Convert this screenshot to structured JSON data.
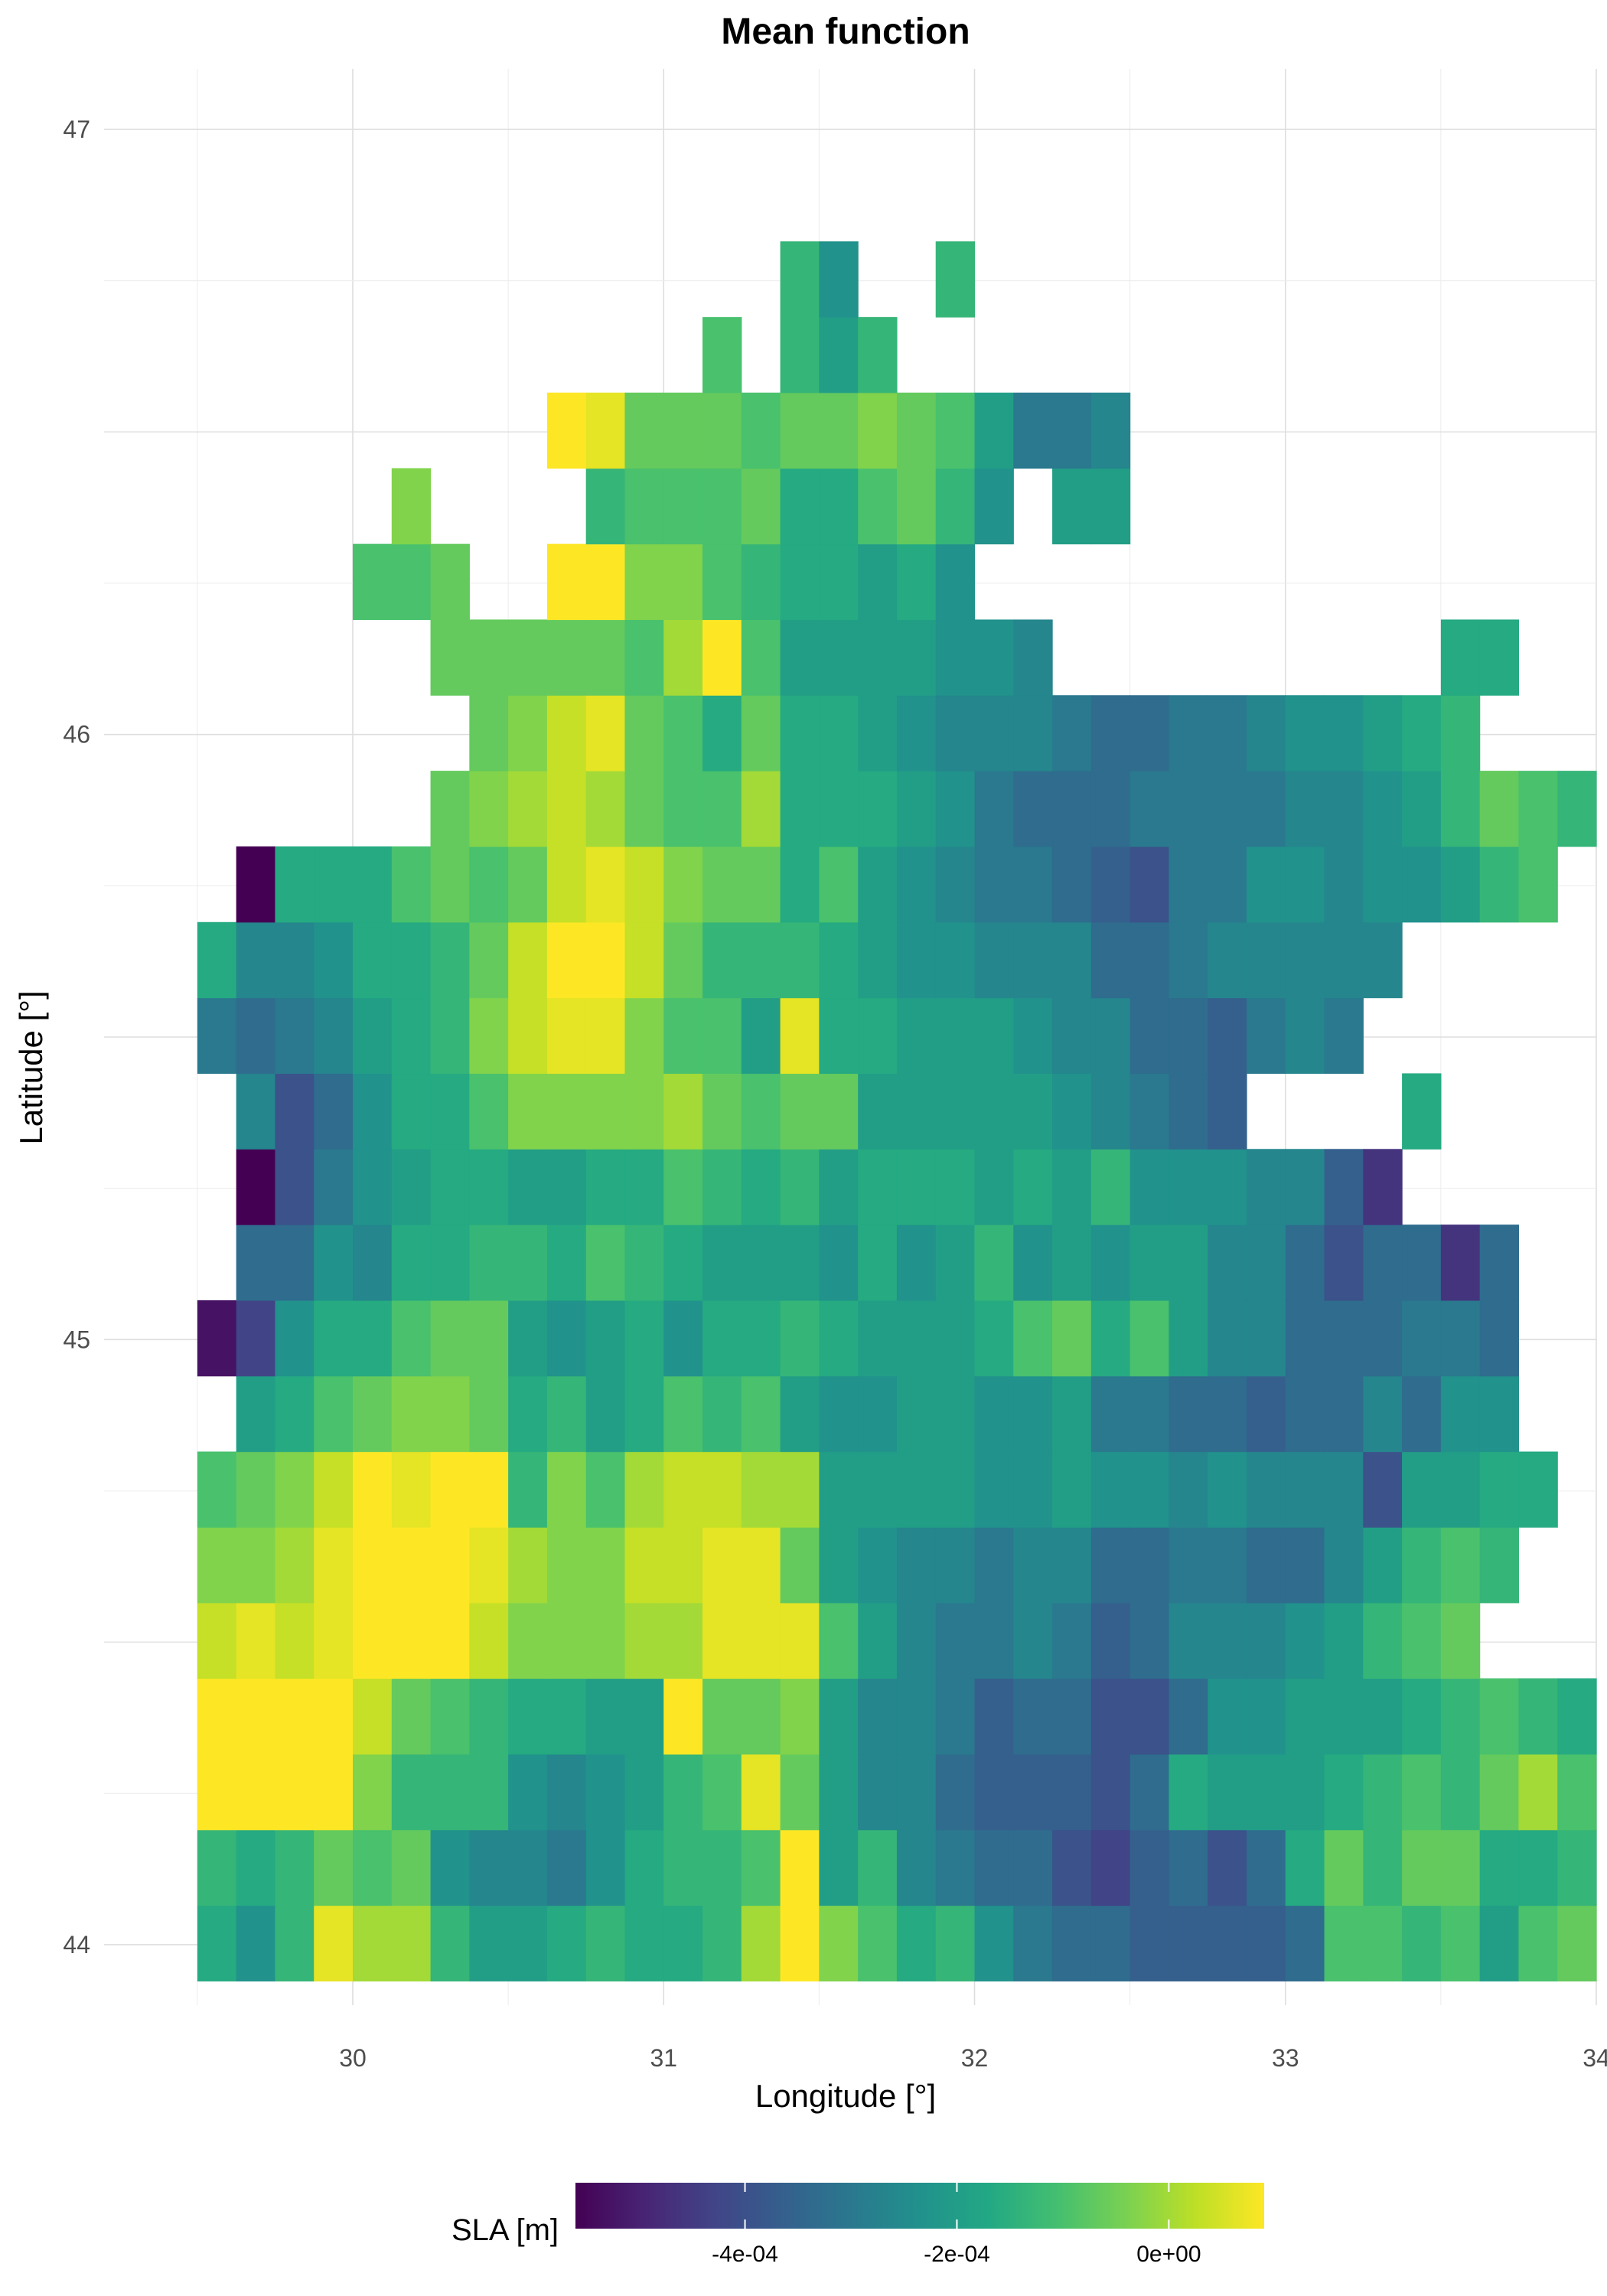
{
  "chart_data": {
    "type": "heatmap",
    "title": "Mean function",
    "xlabel": "Longitude [°]",
    "ylabel": "Latitude [°]",
    "xlim": [
      29.2,
      34.0
    ],
    "ylim": [
      43.9,
      47.1
    ],
    "x_ticks": [
      "30",
      "31",
      "32",
      "33",
      "34"
    ],
    "x_tick_values": [
      30,
      31,
      32,
      33,
      34
    ],
    "y_ticks": [
      "44",
      "45",
      "46",
      "47"
    ],
    "y_tick_values": [
      44,
      45,
      46,
      47
    ],
    "grid": true,
    "legend": {
      "title": "SLA [m]",
      "position": "bottom",
      "colormap": "viridis",
      "range": [
        -0.00056,
        9e-05
      ],
      "ticks": [
        "-4e-04",
        "-2e-04",
        "0e+00"
      ],
      "tick_values": [
        -0.0004,
        -0.0002,
        0.0
      ]
    },
    "cell_width_deg": 0.125,
    "cell_height_deg": 0.125,
    "x_origin": 29.5,
    "y_origin": 43.94,
    "rows_bottom_to_top": [
      {
        "col_start": 0,
        "values": [
          -0.05,
          -0.07,
          -0.04,
          0.02,
          0.0,
          0.0,
          -0.04,
          -0.06,
          -0.06,
          -0.05,
          -0.04,
          -0.05,
          -0.05,
          -0.04,
          0.0,
          0.04,
          -0.01,
          -0.03,
          -0.05,
          -0.04,
          -0.07,
          -0.09,
          -0.1,
          -0.1,
          -0.11,
          -0.11,
          -0.11,
          -0.11,
          -0.1,
          -0.03,
          -0.03,
          -0.04,
          -0.03,
          -0.06,
          -0.03,
          -0.02
        ]
      },
      {
        "col_start": 0,
        "values": [
          -0.04,
          -0.05,
          -0.04,
          -0.02,
          -0.03,
          -0.02,
          -0.07,
          -0.08,
          -0.08,
          -0.09,
          -0.07,
          -0.05,
          -0.04,
          -0.04,
          -0.03,
          0.03,
          -0.06,
          -0.04,
          -0.08,
          -0.09,
          -0.1,
          -0.1,
          -0.12,
          -0.13,
          -0.11,
          -0.1,
          -0.12,
          -0.1,
          -0.05,
          -0.02,
          -0.04,
          -0.02,
          -0.02,
          -0.05,
          -0.05,
          -0.04
        ]
      },
      {
        "col_start": 0,
        "values": [
          0.05,
          0.04,
          0.04,
          0.04,
          -0.01,
          -0.04,
          -0.04,
          -0.04,
          -0.07,
          -0.08,
          -0.07,
          -0.06,
          -0.04,
          -0.03,
          0.02,
          -0.02,
          -0.06,
          -0.08,
          -0.08,
          -0.1,
          -0.11,
          -0.11,
          -0.11,
          -0.12,
          -0.1,
          -0.05,
          -0.06,
          -0.06,
          -0.06,
          -0.05,
          -0.04,
          -0.03,
          -0.04,
          -0.02,
          0.0,
          -0.03
        ]
      },
      {
        "col_start": 0,
        "values": [
          0.06,
          0.03,
          0.03,
          0.03,
          0.01,
          -0.02,
          -0.03,
          -0.04,
          -0.05,
          -0.05,
          -0.06,
          -0.06,
          0.03,
          -0.02,
          -0.02,
          -0.01,
          -0.06,
          -0.08,
          -0.08,
          -0.09,
          -0.11,
          -0.1,
          -0.1,
          -0.12,
          -0.12,
          -0.1,
          -0.07,
          -0.07,
          -0.06,
          -0.06,
          -0.06,
          -0.05,
          -0.04,
          -0.03,
          -0.04,
          -0.05
        ]
      },
      {
        "col_start": 0,
        "values": [
          0.01,
          0.02,
          0.01,
          0.02,
          0.04,
          0.04,
          0.03,
          0.01,
          -0.01,
          -0.01,
          -0.01,
          0.0,
          0.0,
          0.02,
          0.02,
          0.02,
          -0.03,
          -0.06,
          -0.08,
          -0.09,
          -0.09,
          -0.08,
          -0.09,
          -0.11,
          -0.1,
          -0.08,
          -0.08,
          -0.08,
          -0.07,
          -0.06,
          -0.04,
          -0.03,
          -0.02
        ]
      },
      {
        "col_start": 0,
        "values": [
          -0.01,
          -0.01,
          0.0,
          0.02,
          0.05,
          0.05,
          0.03,
          0.02,
          0.0,
          -0.01,
          -0.01,
          0.01,
          0.01,
          0.02,
          0.02,
          -0.02,
          -0.06,
          -0.07,
          -0.08,
          -0.08,
          -0.09,
          -0.08,
          -0.08,
          -0.1,
          -0.1,
          -0.09,
          -0.09,
          -0.1,
          -0.1,
          -0.08,
          -0.06,
          -0.04,
          -0.03,
          -0.04
        ]
      },
      {
        "col_start": 0,
        "values": [
          -0.03,
          -0.02,
          -0.01,
          0.01,
          0.03,
          0.02,
          0.03,
          0.03,
          -0.04,
          -0.01,
          -0.03,
          0.0,
          0.01,
          0.01,
          0.0,
          0.0,
          -0.06,
          -0.06,
          -0.06,
          -0.06,
          -0.07,
          -0.07,
          -0.06,
          -0.07,
          -0.07,
          -0.08,
          -0.07,
          -0.08,
          -0.08,
          -0.08,
          -0.12,
          -0.06,
          -0.06,
          -0.05,
          -0.05
        ]
      },
      {
        "col_start": 1,
        "values": [
          -0.06,
          -0.05,
          -0.03,
          -0.02,
          -0.01,
          -0.01,
          -0.02,
          -0.05,
          -0.04,
          -0.06,
          -0.05,
          -0.03,
          -0.04,
          -0.03,
          -0.06,
          -0.07,
          -0.07,
          -0.06,
          -0.06,
          -0.07,
          -0.07,
          -0.06,
          -0.09,
          -0.09,
          -0.1,
          -0.1,
          -0.11,
          -0.1,
          -0.1,
          -0.08,
          -0.1,
          -0.07,
          -0.07
        ]
      },
      {
        "col_start": 0,
        "values": [
          -0.16,
          -0.13,
          -0.07,
          -0.05,
          -0.05,
          -0.03,
          -0.02,
          -0.02,
          -0.06,
          -0.07,
          -0.06,
          -0.05,
          -0.07,
          -0.05,
          -0.05,
          -0.04,
          -0.05,
          -0.06,
          -0.06,
          -0.06,
          -0.05,
          -0.03,
          -0.02,
          -0.05,
          -0.03,
          -0.06,
          -0.08,
          -0.08,
          -0.1,
          -0.1,
          -0.1,
          -0.09,
          -0.09,
          -0.1
        ]
      },
      {
        "col_start": 1,
        "values": [
          -0.1,
          -0.1,
          -0.07,
          -0.08,
          -0.05,
          -0.05,
          -0.04,
          -0.04,
          -0.05,
          -0.03,
          -0.04,
          -0.05,
          -0.06,
          -0.06,
          -0.06,
          -0.07,
          -0.05,
          -0.07,
          -0.06,
          -0.04,
          -0.07,
          -0.06,
          -0.07,
          -0.06,
          -0.06,
          -0.08,
          -0.08,
          -0.1,
          -0.12,
          -0.1,
          -0.1,
          -0.14,
          -0.1
        ]
      },
      {
        "col_start": 1,
        "values": [
          -0.18,
          -0.12,
          -0.09,
          -0.07,
          -0.06,
          -0.05,
          -0.05,
          -0.06,
          -0.06,
          -0.05,
          -0.05,
          -0.03,
          -0.04,
          -0.05,
          -0.04,
          -0.06,
          -0.05,
          -0.05,
          -0.05,
          -0.06,
          -0.05,
          -0.06,
          -0.04,
          -0.07,
          -0.07,
          -0.07,
          -0.08,
          -0.08,
          -0.11,
          -0.14
        ]
      },
      {
        "col_start": 1,
        "values": [
          -0.08,
          -0.12,
          -0.1,
          -0.07,
          -0.05,
          -0.05,
          -0.03,
          -0.01,
          -0.01,
          -0.01,
          -0.01,
          0.0,
          -0.02,
          -0.03,
          -0.02,
          -0.02,
          -0.06,
          -0.06,
          -0.06,
          -0.06,
          -0.06,
          -0.07,
          -0.08,
          -0.09,
          -0.1,
          -0.11,
          null,
          null,
          null,
          null,
          -0.05
        ]
      },
      {
        "col_start": 0,
        "values": [
          -0.09,
          -0.1,
          -0.09,
          -0.08,
          -0.06,
          -0.05,
          -0.04,
          -0.01,
          0.01,
          0.02,
          0.02,
          -0.01,
          -0.03,
          -0.03,
          -0.06,
          0.02,
          -0.05,
          -0.05,
          -0.06,
          -0.06,
          -0.06,
          -0.07,
          -0.08,
          -0.08,
          -0.1,
          -0.1,
          -0.11,
          -0.09,
          -0.08,
          -0.09
        ]
      },
      {
        "col_start": 0,
        "values": [
          -0.05,
          -0.08,
          -0.08,
          -0.07,
          -0.05,
          -0.05,
          -0.04,
          -0.02,
          0.01,
          0.03,
          0.03,
          0.01,
          -0.02,
          -0.04,
          -0.04,
          -0.04,
          -0.05,
          -0.06,
          -0.07,
          -0.07,
          -0.08,
          -0.08,
          -0.08,
          -0.1,
          -0.1,
          -0.09,
          -0.08,
          -0.08,
          -0.08,
          -0.08,
          -0.08
        ]
      },
      {
        "col_start": 0,
        "values": [
          -0.52,
          -0.05,
          -0.05,
          -0.05,
          -0.03,
          -0.02,
          -0.03,
          -0.02,
          0.01,
          0.02,
          0.01,
          -0.01,
          -0.02,
          -0.02,
          -0.05,
          -0.03,
          -0.06,
          -0.07,
          -0.08,
          -0.09,
          -0.09,
          -0.1,
          -0.11,
          -0.12,
          -0.09,
          -0.09,
          -0.07,
          -0.07,
          -0.08,
          -0.07,
          -0.07,
          -0.06,
          -0.04,
          -0.03
        ],
        "col_start_override": 1
      },
      {
        "col_start": 6,
        "values": [
          -0.02,
          -0.01,
          0.0,
          0.01,
          0.0,
          -0.02,
          -0.03,
          -0.03,
          0.0,
          -0.05,
          -0.05,
          -0.05,
          -0.06,
          -0.07,
          -0.09,
          -0.1,
          -0.1,
          -0.1,
          -0.09,
          -0.09,
          -0.09,
          -0.09,
          -0.08,
          -0.08,
          -0.07,
          -0.06,
          -0.04,
          -0.02,
          -0.03,
          -0.04
        ]
      },
      {
        "col_start": 7,
        "values": [
          -0.02,
          -0.01,
          0.01,
          0.02,
          -0.02,
          -0.03,
          -0.05,
          -0.02,
          -0.05,
          -0.05,
          -0.06,
          -0.07,
          -0.08,
          -0.08,
          -0.08,
          -0.09,
          -0.1,
          -0.1,
          -0.09,
          -0.09,
          -0.08,
          -0.07,
          -0.07,
          -0.06,
          -0.05,
          -0.04
        ]
      },
      {
        "col_start": 6,
        "values": [
          -0.02,
          -0.02,
          -0.02,
          -0.02,
          -0.02,
          -0.03,
          0.0,
          0.04,
          -0.03,
          -0.06,
          -0.06,
          -0.06,
          -0.06,
          -0.07,
          -0.07,
          -0.08,
          null,
          null,
          null,
          null,
          null,
          null,
          null,
          null,
          null,
          null,
          -0.05,
          -0.05
        ]
      },
      {
        "col_start": 4,
        "values": [
          -0.03,
          -0.03,
          -0.02,
          null,
          null,
          0.04,
          0.04,
          -0.01,
          -0.01,
          -0.03,
          -0.04,
          -0.05,
          -0.05,
          -0.06,
          -0.05,
          -0.07
        ]
      },
      {
        "col_start": 5,
        "values": [
          -0.01,
          null,
          null,
          null,
          null,
          -0.04,
          -0.03,
          -0.03,
          -0.03,
          -0.02,
          -0.05,
          -0.05,
          -0.03,
          -0.02,
          -0.04,
          -0.07,
          null,
          -0.06,
          -0.06
        ]
      },
      {
        "col_start": 9,
        "values": [
          0.03,
          0.02,
          -0.02,
          -0.02,
          -0.02,
          -0.03,
          -0.02,
          -0.02,
          -0.01,
          -0.02,
          -0.03,
          -0.06,
          -0.09,
          -0.09,
          -0.08
        ]
      },
      {
        "col_start": 13,
        "values": [
          -0.03,
          null,
          -0.04,
          -0.06,
          -0.04
        ]
      },
      {
        "col_start": 15,
        "values": [
          -0.04,
          -0.07,
          null,
          null,
          -0.04
        ]
      }
    ]
  }
}
